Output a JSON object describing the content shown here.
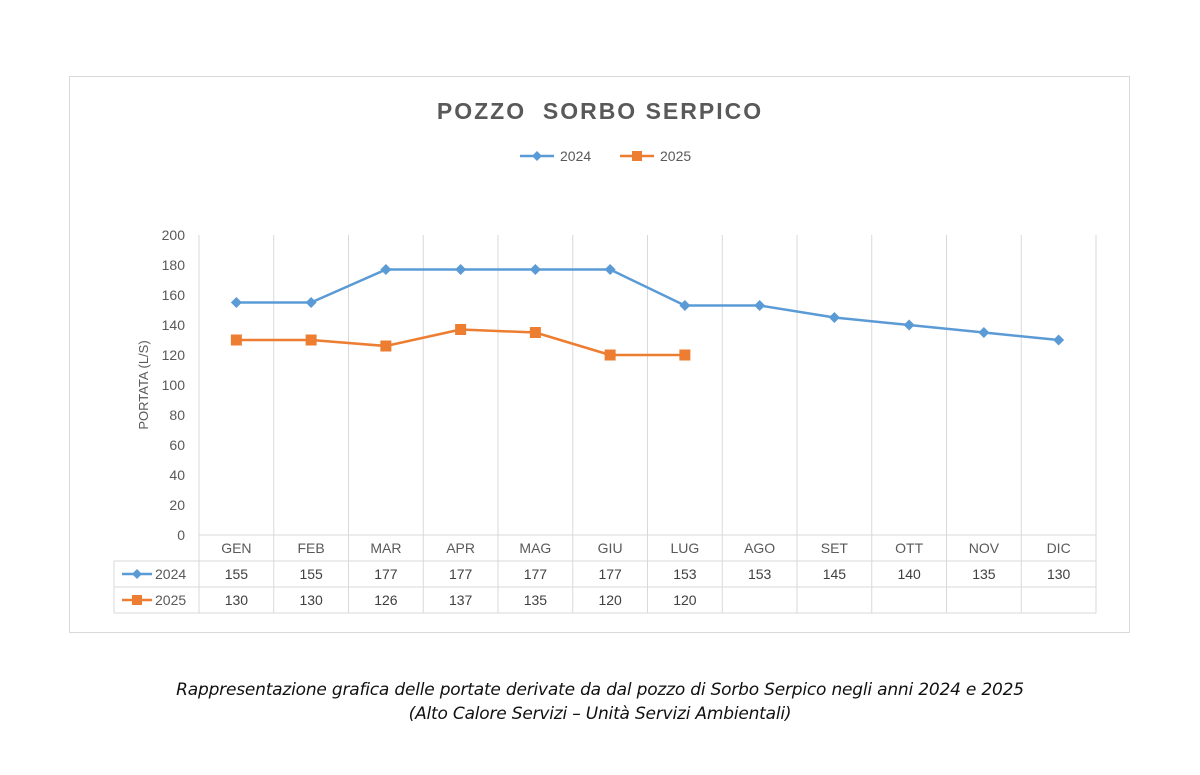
{
  "chart_data": {
    "type": "line",
    "title": "POZZO  SORBO SERPICO",
    "ylabel": "PORTATA (L/S)",
    "xlabel": "",
    "ylim": [
      0,
      200
    ],
    "yticks": [
      0,
      20,
      40,
      60,
      80,
      100,
      120,
      140,
      160,
      180,
      200
    ],
    "categories": [
      "GEN",
      "FEB",
      "MAR",
      "APR",
      "MAG",
      "GIU",
      "LUG",
      "AGO",
      "SET",
      "OTT",
      "NOV",
      "DIC"
    ],
    "series": [
      {
        "name": "2024",
        "color": "#5b9bd5",
        "marker": "diamond",
        "values": [
          155,
          155,
          177,
          177,
          177,
          177,
          153,
          153,
          145,
          140,
          135,
          130
        ]
      },
      {
        "name": "2025",
        "color": "#ed7d31",
        "marker": "square",
        "values": [
          130,
          130,
          126,
          137,
          135,
          120,
          120,
          null,
          null,
          null,
          null,
          null
        ]
      }
    ],
    "legend": "top",
    "grid": "vertical",
    "data_table": true
  },
  "caption": {
    "line1": "Rappresentazione grafica delle portate derivate da dal pozzo di Sorbo Serpico negli anni 2024 e 2025",
    "line2": "(Alto Calore Servizi – Unità Servizi Ambientali)"
  }
}
